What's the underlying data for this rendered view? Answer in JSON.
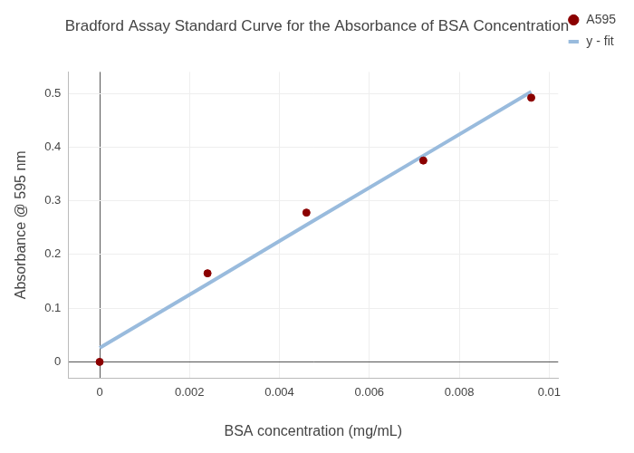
{
  "chart_data": {
    "type": "scatter",
    "title": "Bradford Assay Standard Curve for the Absorbance of BSA Concentration",
    "x_label": "BSA concentration (mg/mL)",
    "y_label": "Absorbance @ 595 nm",
    "x": [
      0,
      0.0024,
      0.0046,
      0.0072,
      0.0096
    ],
    "series": [
      {
        "name": "A595",
        "type": "scatter",
        "marker": "circle",
        "color": "#8b0000",
        "values": [
          0,
          0.165,
          0.278,
          0.375,
          0.492
        ]
      },
      {
        "name": "y - fit",
        "type": "line",
        "line_style": "solid",
        "color": "#99bbdd",
        "values": [
          0.026,
          0.145,
          0.255,
          0.384,
          0.503
        ]
      }
    ],
    "xlim": [
      -0.0007,
      0.0102
    ],
    "ylim": [
      -0.03,
      0.54
    ],
    "xticks": [
      0,
      0.002,
      0.004,
      0.006,
      0.008,
      0.01
    ],
    "yticks": [
      0,
      0.1,
      0.2,
      0.3,
      0.4,
      0.5
    ],
    "grid": true,
    "legend": "top-right"
  }
}
